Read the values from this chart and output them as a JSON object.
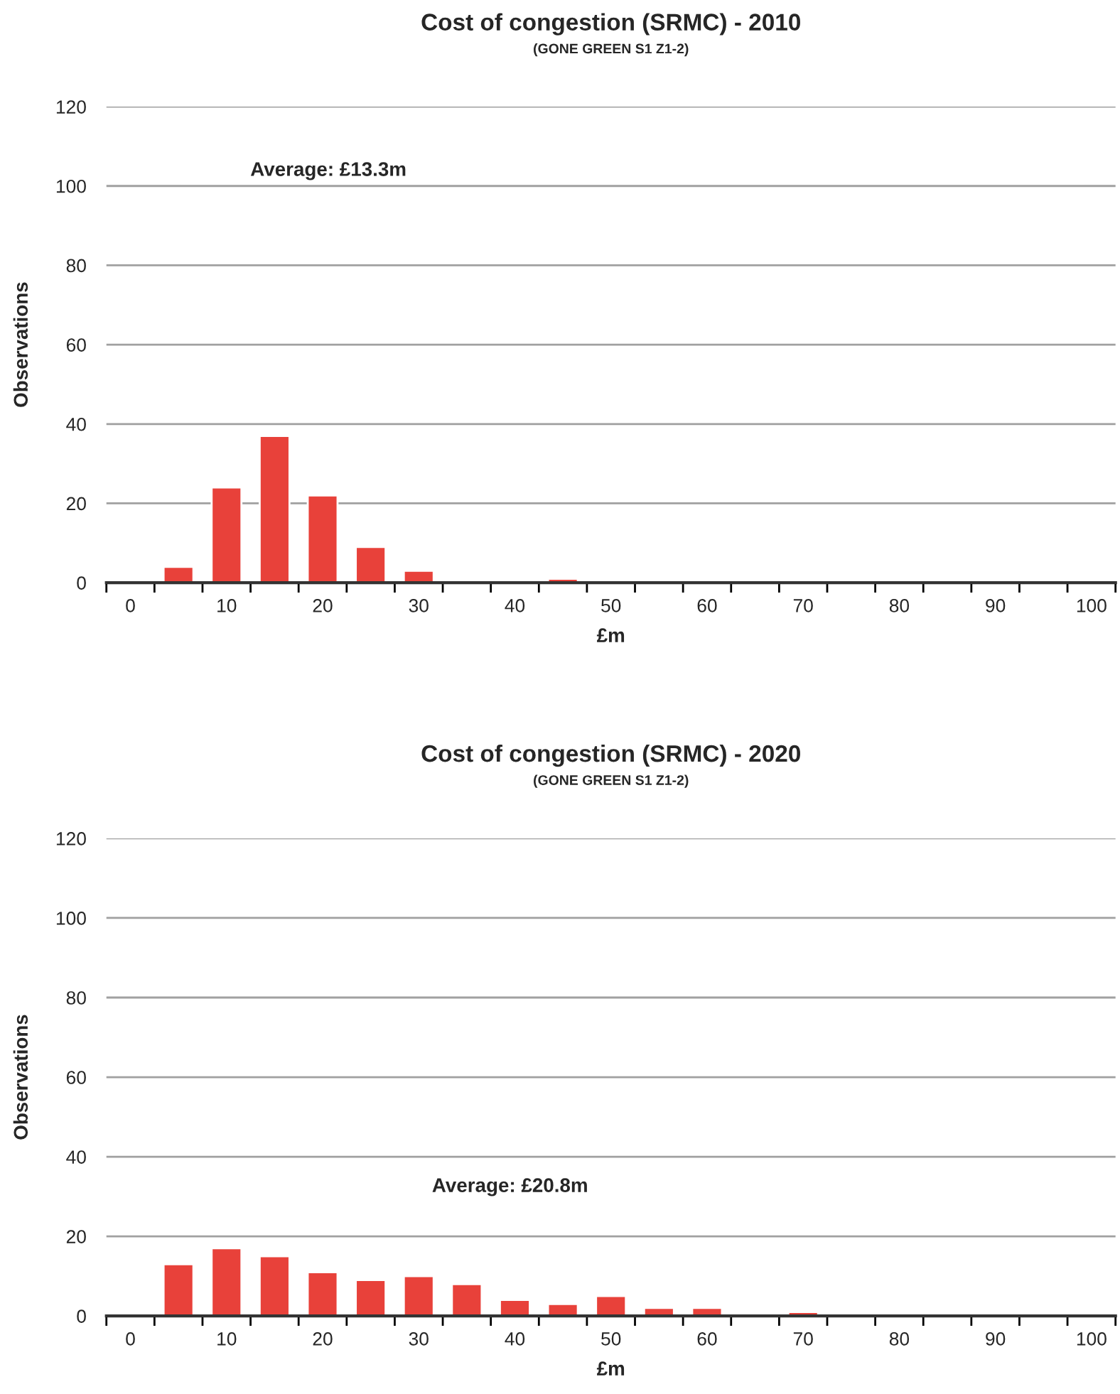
{
  "chart_data": [
    {
      "type": "bar",
      "title": "Cost of congestion (SRMC) - 2010",
      "subtitle": "(GONE GREEN S1 Z1-2)",
      "xlabel": "£m",
      "ylabel": "Observations",
      "annotations": [
        "Average: £13.3m"
      ],
      "categories": [
        "0",
        null,
        "10",
        null,
        "20",
        null,
        "30",
        null,
        "40",
        null,
        "50",
        null,
        "60",
        null,
        "70",
        null,
        "80",
        null,
        "90",
        null,
        "100"
      ],
      "values": [
        0,
        4,
        24,
        37,
        22,
        9,
        3,
        0,
        0,
        1,
        0,
        0,
        0,
        0,
        0,
        0,
        0,
        0,
        0,
        0,
        0
      ],
      "color": "#e8413a",
      "ylim": [
        0,
        120
      ],
      "yticks": [
        0,
        20,
        40,
        60,
        80,
        100,
        120
      ],
      "grid": "y",
      "legend": false
    },
    {
      "type": "bar",
      "title": "Cost of congestion (SRMC) - 2020",
      "subtitle": "(GONE GREEN S1 Z1-2)",
      "xlabel": "£m",
      "ylabel": "Observations",
      "annotations": [
        "Average: £20.8m"
      ],
      "categories": [
        "0",
        null,
        "10",
        null,
        "20",
        null,
        "30",
        null,
        "40",
        null,
        "50",
        null,
        "60",
        null,
        "70",
        null,
        "80",
        null,
        "90",
        null,
        "100"
      ],
      "values": [
        0,
        13,
        17,
        15,
        11,
        9,
        10,
        8,
        4,
        3,
        5,
        2,
        2,
        0,
        1,
        0,
        0,
        0,
        0,
        0,
        0
      ],
      "color": "#e8413a",
      "ylim": [
        0,
        120
      ],
      "yticks": [
        0,
        20,
        40,
        60,
        80,
        100,
        120
      ],
      "grid": "y",
      "legend": false
    }
  ]
}
